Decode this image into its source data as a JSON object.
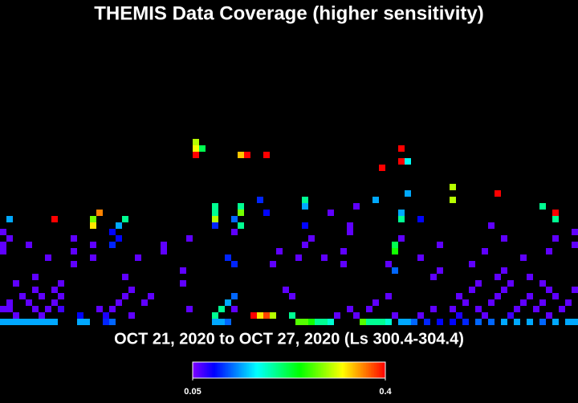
{
  "chart_data": {
    "type": "heatmap",
    "title": "THEMIS Data Coverage (higher sensitivity)",
    "subtitle": "OCT 21, 2020 to OCT 27, 2020 (Ls 300.4-304.4)",
    "clim": [
      0.05,
      0.4
    ],
    "colorbar_ticks": [
      0.05,
      0.4
    ],
    "cells": [
      [
        0,
        0,
        0.14
      ],
      [
        1,
        0,
        0.14
      ],
      [
        2,
        0,
        0.14
      ],
      [
        3,
        0,
        0.14
      ],
      [
        4,
        0,
        0.14
      ],
      [
        5,
        0,
        0.14
      ],
      [
        6,
        0,
        0.14
      ],
      [
        7,
        0,
        0.14
      ],
      [
        8,
        0,
        0.14
      ],
      [
        12,
        0,
        0.14
      ],
      [
        13,
        0,
        0.14
      ],
      [
        16,
        0,
        0.1
      ],
      [
        17,
        0,
        0.12
      ],
      [
        33,
        0,
        0.14
      ],
      [
        34,
        0,
        0.14
      ],
      [
        35,
        0,
        0.12
      ],
      [
        46,
        0,
        0.27
      ],
      [
        47,
        0,
        0.27
      ],
      [
        48,
        0,
        0.25
      ],
      [
        49,
        0,
        0.2
      ],
      [
        50,
        0,
        0.2
      ],
      [
        51,
        0,
        0.18
      ],
      [
        56,
        0,
        0.27
      ],
      [
        57,
        0,
        0.2
      ],
      [
        58,
        0,
        0.2
      ],
      [
        59,
        0,
        0.2
      ],
      [
        60,
        0,
        0.18
      ],
      [
        62,
        0,
        0.14
      ],
      [
        63,
        0,
        0.14
      ],
      [
        64,
        0,
        0.12
      ],
      [
        66,
        0,
        0.1
      ],
      [
        68,
        0,
        0.09
      ],
      [
        70,
        0,
        0.09
      ],
      [
        72,
        0,
        0.1
      ],
      [
        74,
        0,
        0.12
      ],
      [
        76,
        0,
        0.12
      ],
      [
        78,
        0,
        0.14
      ],
      [
        80,
        0,
        0.14
      ],
      [
        82,
        0,
        0.14
      ],
      [
        84,
        0,
        0.12
      ],
      [
        86,
        0,
        0.14
      ],
      [
        88,
        0,
        0.14
      ],
      [
        89,
        0,
        0.14
      ],
      [
        39,
        1,
        0.4
      ],
      [
        40,
        1,
        0.33
      ],
      [
        41,
        1,
        0.38
      ],
      [
        42,
        1,
        0.3
      ],
      [
        45,
        1,
        0.2
      ],
      [
        12,
        1,
        0.09
      ],
      [
        16,
        1,
        0.08
      ],
      [
        20,
        1,
        0.06
      ],
      [
        2,
        1,
        0.06
      ],
      [
        6,
        1,
        0.06
      ],
      [
        33,
        1,
        0.2
      ],
      [
        52,
        1,
        0.06
      ],
      [
        55,
        1,
        0.06
      ],
      [
        61,
        1,
        0.06
      ],
      [
        65,
        1,
        0.06
      ],
      [
        71,
        1,
        0.08
      ],
      [
        75,
        1,
        0.06
      ],
      [
        79,
        1,
        0.07
      ],
      [
        85,
        1,
        0.06
      ],
      [
        0,
        2,
        0.06
      ],
      [
        1,
        2,
        0.06
      ],
      [
        5,
        2,
        0.06
      ],
      [
        7,
        2,
        0.06
      ],
      [
        9,
        2,
        0.07
      ],
      [
        15,
        2,
        0.06
      ],
      [
        17,
        2,
        0.06
      ],
      [
        29,
        2,
        0.06
      ],
      [
        34,
        2,
        0.2
      ],
      [
        36,
        2,
        0.06
      ],
      [
        54,
        2,
        0.06
      ],
      [
        57,
        2,
        0.06
      ],
      [
        67,
        2,
        0.06
      ],
      [
        70,
        2,
        0.06
      ],
      [
        74,
        2,
        0.06
      ],
      [
        80,
        2,
        0.06
      ],
      [
        83,
        2,
        0.06
      ],
      [
        87,
        2,
        0.06
      ],
      [
        1,
        3,
        0.06
      ],
      [
        4,
        3,
        0.06
      ],
      [
        8,
        3,
        0.06
      ],
      [
        18,
        3,
        0.06
      ],
      [
        22,
        3,
        0.06
      ],
      [
        35,
        3,
        0.14
      ],
      [
        58,
        3,
        0.06
      ],
      [
        72,
        3,
        0.06
      ],
      [
        76,
        3,
        0.06
      ],
      [
        81,
        3,
        0.06
      ],
      [
        84,
        3,
        0.06
      ],
      [
        88,
        3,
        0.06
      ],
      [
        3,
        4,
        0.06
      ],
      [
        6,
        4,
        0.06
      ],
      [
        9,
        4,
        0.06
      ],
      [
        19,
        4,
        0.06
      ],
      [
        23,
        4,
        0.06
      ],
      [
        36,
        4,
        0.12
      ],
      [
        45,
        4,
        0.06
      ],
      [
        60,
        4,
        0.06
      ],
      [
        71,
        4,
        0.06
      ],
      [
        77,
        4,
        0.06
      ],
      [
        82,
        4,
        0.06
      ],
      [
        86,
        4,
        0.06
      ],
      [
        5,
        5,
        0.06
      ],
      [
        8,
        5,
        0.06
      ],
      [
        20,
        5,
        0.06
      ],
      [
        44,
        5,
        0.06
      ],
      [
        73,
        5,
        0.06
      ],
      [
        78,
        5,
        0.06
      ],
      [
        85,
        5,
        0.06
      ],
      [
        89,
        5,
        0.06
      ],
      [
        2,
        6,
        0.06
      ],
      [
        9,
        6,
        0.06
      ],
      [
        28,
        6,
        0.06
      ],
      [
        74,
        6,
        0.06
      ],
      [
        79,
        6,
        0.06
      ],
      [
        84,
        6,
        0.06
      ],
      [
        5,
        7,
        0.06
      ],
      [
        19,
        7,
        0.06
      ],
      [
        67,
        7,
        0.06
      ],
      [
        77,
        7,
        0.06
      ],
      [
        82,
        7,
        0.06
      ],
      [
        28,
        8,
        0.06
      ],
      [
        61,
        8,
        0.12
      ],
      [
        68,
        8,
        0.06
      ],
      [
        78,
        8,
        0.06
      ],
      [
        11,
        9,
        0.06
      ],
      [
        36,
        9,
        0.1
      ],
      [
        42,
        9,
        0.06
      ],
      [
        53,
        9,
        0.06
      ],
      [
        60,
        9,
        0.06
      ],
      [
        73,
        9,
        0.06
      ],
      [
        7,
        10,
        0.06
      ],
      [
        14,
        10,
        0.06
      ],
      [
        21,
        10,
        0.06
      ],
      [
        35,
        10,
        0.1
      ],
      [
        46,
        10,
        0.06
      ],
      [
        50,
        10,
        0.06
      ],
      [
        65,
        10,
        0.06
      ],
      [
        81,
        10,
        0.06
      ],
      [
        0,
        11,
        0.06
      ],
      [
        11,
        11,
        0.06
      ],
      [
        25,
        11,
        0.06
      ],
      [
        43,
        11,
        0.06
      ],
      [
        53,
        11,
        0.06
      ],
      [
        61,
        11,
        0.25
      ],
      [
        75,
        11,
        0.06
      ],
      [
        85,
        11,
        0.06
      ],
      [
        0,
        12,
        0.06
      ],
      [
        4,
        12,
        0.06
      ],
      [
        14,
        12,
        0.06
      ],
      [
        17,
        12,
        0.1
      ],
      [
        25,
        12,
        0.06
      ],
      [
        47,
        12,
        0.06
      ],
      [
        61,
        12,
        0.22
      ],
      [
        68,
        12,
        0.06
      ],
      [
        89,
        12,
        0.06
      ],
      [
        1,
        13,
        0.06
      ],
      [
        11,
        13,
        0.06
      ],
      [
        18,
        13,
        0.09
      ],
      [
        29,
        13,
        0.06
      ],
      [
        48,
        13,
        0.06
      ],
      [
        62,
        13,
        0.06
      ],
      [
        78,
        13,
        0.06
      ],
      [
        86,
        13,
        0.06
      ],
      [
        0,
        14,
        0.06
      ],
      [
        17,
        14,
        0.09
      ],
      [
        36,
        14,
        0.06
      ],
      [
        54,
        14,
        0.06
      ],
      [
        89,
        14,
        0.06
      ],
      [
        18,
        15,
        0.14
      ],
      [
        14,
        15,
        0.33
      ],
      [
        33,
        15,
        0.1
      ],
      [
        37,
        15,
        0.2
      ],
      [
        47,
        15,
        0.09
      ],
      [
        54,
        15,
        0.06
      ],
      [
        76,
        15,
        0.06
      ],
      [
        1,
        16,
        0.14
      ],
      [
        8,
        16,
        0.4
      ],
      [
        14,
        16,
        0.28
      ],
      [
        19,
        16,
        0.2
      ],
      [
        33,
        16,
        0.3
      ],
      [
        36,
        16,
        0.12
      ],
      [
        62,
        16,
        0.2
      ],
      [
        65,
        16,
        0.09
      ],
      [
        86,
        16,
        0.2
      ],
      [
        15,
        17,
        0.36
      ],
      [
        33,
        17,
        0.2
      ],
      [
        37,
        17,
        0.28
      ],
      [
        41,
        17,
        0.09
      ],
      [
        51,
        17,
        0.06
      ],
      [
        62,
        17,
        0.14
      ],
      [
        86,
        17,
        0.4
      ],
      [
        33,
        18,
        0.2
      ],
      [
        37,
        18,
        0.2
      ],
      [
        55,
        18,
        0.06
      ],
      [
        84,
        18,
        0.2
      ],
      [
        47,
        18,
        0.14
      ],
      [
        40,
        19,
        0.1
      ],
      [
        70,
        19,
        0.3
      ],
      [
        47,
        19,
        0.2
      ],
      [
        58,
        19,
        0.14
      ],
      [
        77,
        20,
        0.4
      ],
      [
        63,
        20,
        0.14
      ],
      [
        70,
        21,
        0.3
      ],
      [
        59,
        24,
        0.4
      ],
      [
        62,
        25,
        0.4
      ],
      [
        63,
        25,
        0.17
      ],
      [
        30,
        26,
        0.4
      ],
      [
        37,
        26,
        0.34
      ],
      [
        38,
        26,
        0.4
      ],
      [
        41,
        26,
        0.4
      ],
      [
        30,
        27,
        0.32
      ],
      [
        31,
        27,
        0.22
      ],
      [
        62,
        27,
        0.4
      ],
      [
        30,
        28,
        0.3
      ]
    ]
  }
}
